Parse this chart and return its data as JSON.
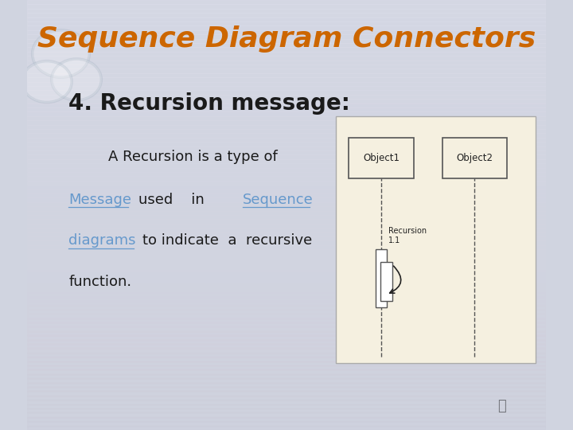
{
  "title": "Sequence Diagram Connectors",
  "title_color": "#CC6600",
  "title_fontsize": 26,
  "bg_color": "#d0d4e0",
  "heading": "4. Recursion message:",
  "heading_color": "#1a1a1a",
  "heading_fontsize": 20,
  "diagram_bg": "#f5f0e0",
  "diagram_border": "#888888",
  "obj1_label": "Object1",
  "obj2_label": "Object2",
  "recursion_label": "Recursion\n1.1",
  "link_color": "#6699cc",
  "text_color": "#1a1a1a",
  "body_fontsize": 13
}
